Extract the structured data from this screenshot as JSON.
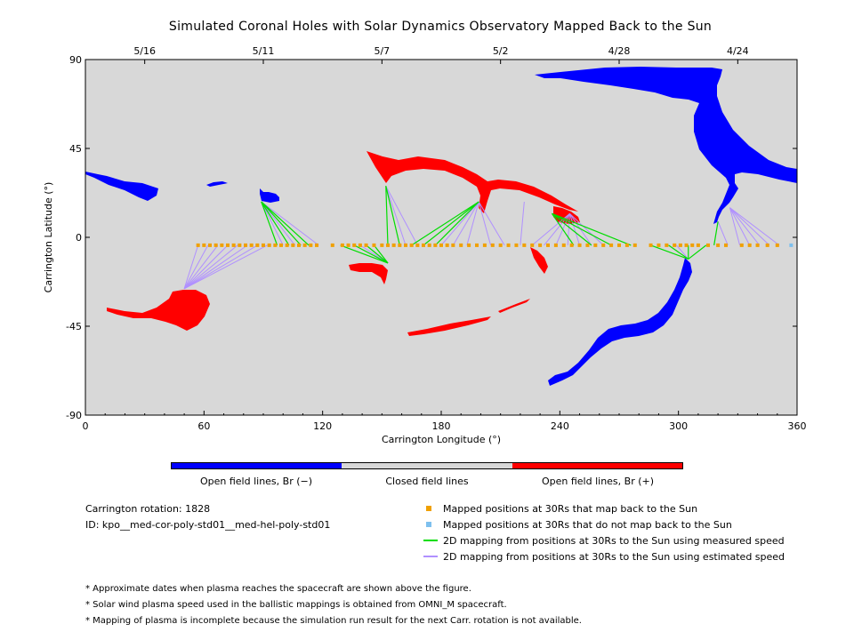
{
  "chart_data": {
    "type": "scatter",
    "title": "Simulated Coronal Holes with Solar Dynamics Observatory Mapped Back to the Sun",
    "xlabel": "Carrington Longitude (°)",
    "ylabel": "Carrington Latitude (°)",
    "xlim": [
      0,
      360
    ],
    "ylim": [
      -90,
      90
    ],
    "x_ticks": [
      "0",
      "60",
      "120",
      "180",
      "240",
      "300",
      "360"
    ],
    "y_ticks": [
      "90",
      "45",
      "0",
      "-45",
      "-90"
    ],
    "top_date_ticks": [
      {
        "label": "5/16",
        "lon": 30
      },
      {
        "label": "5/11",
        "lon": 90
      },
      {
        "label": "5/7",
        "lon": 150
      },
      {
        "label": "5/2",
        "lon": 210
      },
      {
        "label": "4/28",
        "lon": 270
      },
      {
        "label": "4/24",
        "lon": 330
      }
    ],
    "background_color": "#d8d8d8",
    "colors": {
      "open_negative": "#0000ff",
      "closed": "#d8d8d8",
      "open_positive": "#ff0000",
      "mapped": "#f0a000",
      "unmapped": "#7ec0ee",
      "measured": "#00dd00",
      "estimated": "#b090ff"
    },
    "mapped_positions_lon": [
      57,
      60,
      63,
      66,
      69,
      72,
      75,
      78,
      81,
      84,
      87,
      90,
      93,
      96,
      99,
      102,
      105,
      108,
      111,
      114,
      117,
      125,
      130,
      133,
      136,
      139,
      142,
      146,
      150,
      153,
      156,
      159,
      162,
      165,
      168,
      171,
      174,
      177,
      180,
      183,
      186,
      190,
      194,
      198,
      202,
      206,
      210,
      214,
      218,
      222,
      226,
      230,
      234,
      238,
      242,
      246,
      250,
      254,
      258,
      262,
      266,
      270,
      274,
      278,
      286,
      290,
      294,
      298,
      301,
      304,
      307,
      310,
      315,
      320,
      324,
      332,
      336,
      340,
      345,
      350
    ],
    "unmapped_positions_lon": [
      357
    ],
    "mapped_positions_lat": -4,
    "measured_mappings": [
      {
        "from": [
          97,
          -4
        ],
        "to": [
          89,
          18
        ]
      },
      {
        "from": [
          103,
          -4
        ],
        "to": [
          89,
          18
        ]
      },
      {
        "from": [
          109,
          -4
        ],
        "to": [
          89,
          18
        ]
      },
      {
        "from": [
          113,
          -4
        ],
        "to": [
          89,
          18
        ]
      },
      {
        "from": [
          129,
          -4
        ],
        "to": [
          153,
          -13
        ]
      },
      {
        "from": [
          136,
          -4
        ],
        "to": [
          153,
          -13
        ]
      },
      {
        "from": [
          142,
          -4
        ],
        "to": [
          153,
          -13
        ]
      },
      {
        "from": [
          146,
          -4
        ],
        "to": [
          153,
          -13
        ]
      },
      {
        "from": [
          153,
          -4
        ],
        "to": [
          152,
          26
        ]
      },
      {
        "from": [
          159,
          -4
        ],
        "to": [
          152,
          26
        ]
      },
      {
        "from": [
          165,
          -4
        ],
        "to": [
          199,
          18
        ]
      },
      {
        "from": [
          171,
          -4
        ],
        "to": [
          199,
          18
        ]
      },
      {
        "from": [
          177,
          -4
        ],
        "to": [
          199,
          18
        ]
      },
      {
        "from": [
          247,
          -4
        ],
        "to": [
          236,
          12
        ]
      },
      {
        "from": [
          256,
          -4
        ],
        "to": [
          236,
          12
        ]
      },
      {
        "from": [
          266,
          -4
        ],
        "to": [
          236,
          12
        ]
      },
      {
        "from": [
          276,
          -4
        ],
        "to": [
          236,
          12
        ]
      },
      {
        "from": [
          286,
          -4
        ],
        "to": [
          305,
          -11
        ]
      },
      {
        "from": [
          295,
          -4
        ],
        "to": [
          305,
          -11
        ]
      },
      {
        "from": [
          305,
          -4
        ],
        "to": [
          305,
          -11
        ]
      },
      {
        "from": [
          314,
          -4
        ],
        "to": [
          305,
          -11
        ]
      },
      {
        "from": [
          318,
          -4
        ],
        "to": [
          320,
          8
        ]
      }
    ],
    "estimated_mappings": [
      {
        "from": [
          57,
          -4
        ],
        "to": [
          50,
          -26
        ]
      },
      {
        "from": [
          62,
          -4
        ],
        "to": [
          50,
          -26
        ]
      },
      {
        "from": [
          67,
          -4
        ],
        "to": [
          50,
          -26
        ]
      },
      {
        "from": [
          72,
          -4
        ],
        "to": [
          50,
          -26
        ]
      },
      {
        "from": [
          77,
          -4
        ],
        "to": [
          50,
          -26
        ]
      },
      {
        "from": [
          82,
          -4
        ],
        "to": [
          50,
          -26
        ]
      },
      {
        "from": [
          87,
          -4
        ],
        "to": [
          50,
          -26
        ]
      },
      {
        "from": [
          92,
          -4
        ],
        "to": [
          50,
          -26
        ]
      },
      {
        "from": [
          100,
          -4
        ],
        "to": [
          89,
          18
        ]
      },
      {
        "from": [
          106,
          -4
        ],
        "to": [
          89,
          18
        ]
      },
      {
        "from": [
          118,
          -4
        ],
        "to": [
          89,
          18
        ]
      },
      {
        "from": [
          139,
          -4
        ],
        "to": [
          153,
          -13
        ]
      },
      {
        "from": [
          162,
          -4
        ],
        "to": [
          152,
          26
        ]
      },
      {
        "from": [
          168,
          -4
        ],
        "to": [
          152,
          26
        ]
      },
      {
        "from": [
          180,
          -4
        ],
        "to": [
          199,
          18
        ]
      },
      {
        "from": [
          186,
          -4
        ],
        "to": [
          199,
          18
        ]
      },
      {
        "from": [
          193,
          -4
        ],
        "to": [
          199,
          18
        ]
      },
      {
        "from": [
          205,
          -4
        ],
        "to": [
          199,
          18
        ]
      },
      {
        "from": [
          212,
          -4
        ],
        "to": [
          199,
          18
        ]
      },
      {
        "from": [
          220,
          -4
        ],
        "to": [
          222,
          18
        ]
      },
      {
        "from": [
          226,
          -4
        ],
        "to": [
          245,
          12
        ]
      },
      {
        "from": [
          232,
          -4
        ],
        "to": [
          245,
          12
        ]
      },
      {
        "from": [
          238,
          -4
        ],
        "to": [
          245,
          12
        ]
      },
      {
        "from": [
          244,
          -4
        ],
        "to": [
          245,
          12
        ]
      },
      {
        "from": [
          250,
          -4
        ],
        "to": [
          245,
          12
        ]
      },
      {
        "from": [
          256,
          -4
        ],
        "to": [
          245,
          12
        ]
      },
      {
        "from": [
          262,
          -4
        ],
        "to": [
          245,
          12
        ]
      },
      {
        "from": [
          299,
          -4
        ],
        "to": [
          305,
          -11
        ]
      },
      {
        "from": [
          325,
          -4
        ],
        "to": [
          320,
          8
        ]
      },
      {
        "from": [
          331,
          -4
        ],
        "to": [
          326,
          15
        ]
      },
      {
        "from": [
          336,
          -4
        ],
        "to": [
          326,
          15
        ]
      },
      {
        "from": [
          341,
          -4
        ],
        "to": [
          326,
          15
        ]
      },
      {
        "from": [
          346,
          -4
        ],
        "to": [
          326,
          15
        ]
      },
      {
        "from": [
          351,
          -4
        ],
        "to": [
          326,
          15
        ]
      }
    ],
    "colorbar_labels": [
      "Open field lines, Br (−)",
      "Closed field lines",
      "Open field lines, Br (+)"
    ],
    "legend": [
      "Mapped positions at 30Rs that map back to the Sun",
      "Mapped positions at 30Rs that do not map back to the Sun",
      "2D mapping from positions at 30Rs to the Sun using measured speed",
      "2D mapping from positions at 30Rs to the Sun using estimated speed"
    ]
  },
  "info": {
    "rotation": "Carrington rotation: 1828",
    "id": "ID: kpo__med-cor-poly-std01__med-hel-poly-std01"
  },
  "notes": [
    "* Approximate dates when plasma reaches the spacecraft are shown above the figure.",
    "* Solar wind plasma speed used in the ballistic mappings is obtained from OMNI_M spacecraft.",
    "* Mapping of plasma is incomplete because the simulation run result for the next Carr. rotation is not available."
  ]
}
